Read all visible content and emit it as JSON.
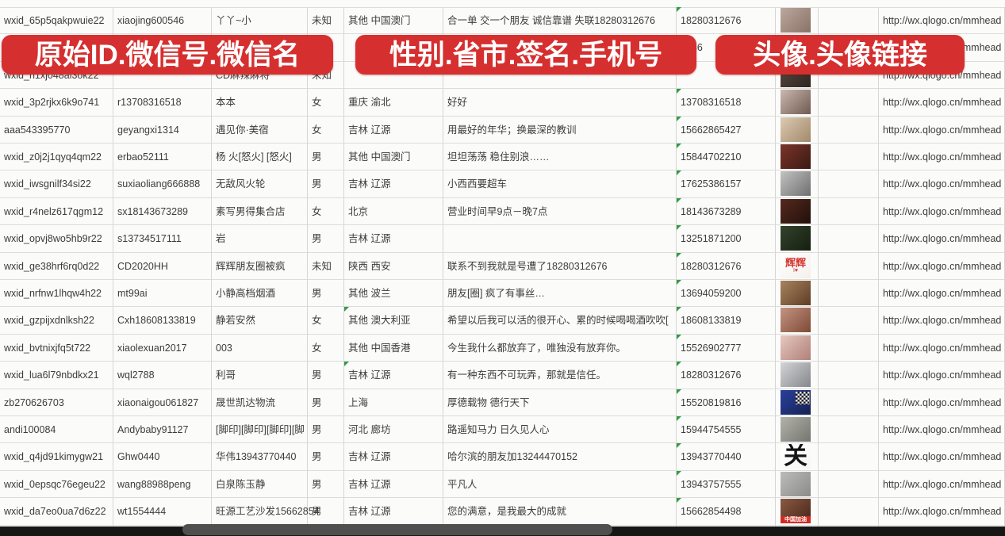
{
  "banners": {
    "left": "原始ID.微信号.微信名",
    "middle": "性别.省市.签名.手机号",
    "right": "头像.头像链接",
    "sticker_color": "#d62f2f"
  },
  "table": {
    "url_prefix": "http://wx.qlogo.cn/mmhead",
    "rows": [
      {
        "wxid": "wxid_65p5qakpwuie22",
        "account": "xiaojing600546",
        "name": "丫丫~小",
        "gender": "未知",
        "region": "其他 中国澳门",
        "signature": "合一单 交一个朋友 诚信靠谱 失联18280312676",
        "phone": "18280312676",
        "url": "http://wx.qlogo.cn/mmhead",
        "phone_marker": true,
        "region_marker": false,
        "avatar": {
          "bg1": "#bba89f",
          "bg2": "#8a7166",
          "label": "",
          "label_color": "",
          "sub": "",
          "band": "",
          "qr": false
        }
      },
      {
        "wxid": "",
        "account": "",
        "name": "",
        "gender": "",
        "region": "",
        "signature": "",
        "phone": "5386",
        "url": "http://wx.qlogo.cn/mmhead",
        "phone_marker": false,
        "region_marker": false,
        "avatar": null
      },
      {
        "wxid": "wxid_h1xj048al3ok22",
        "account": "",
        "name": "CD麻辣麻将",
        "gender": "未知",
        "region": "",
        "signature": "",
        "phone": "",
        "url": "http://wx.qlogo.cn/mmhead",
        "phone_marker": false,
        "region_marker": false,
        "avatar": {
          "bg1": "#5a4a42",
          "bg2": "#2e2620",
          "label": "",
          "label_color": "",
          "sub": "",
          "band": "",
          "qr": false
        }
      },
      {
        "wxid": "wxid_3p2rjkx6k9o741",
        "account": "r13708316518",
        "name": "本本",
        "gender": "女",
        "region": "重庆 渝北",
        "signature": "好好",
        "phone": "13708316518",
        "url": "http://wx.qlogo.cn/mmhead",
        "phone_marker": true,
        "region_marker": false,
        "avatar": {
          "bg1": "#cbb8b0",
          "bg2": "#6e5a50",
          "label": "",
          "label_color": "",
          "sub": "",
          "band": "",
          "qr": false
        }
      },
      {
        "wxid": "aaa543395770",
        "account": "geyangxi1314",
        "name": "遇见你·美宿",
        "gender": "女",
        "region": "吉林 辽源",
        "signature": "用最好的年华；换最深的教训",
        "phone": "15662865427",
        "url": "http://wx.qlogo.cn/mmhead",
        "phone_marker": true,
        "region_marker": false,
        "avatar": {
          "bg1": "#dccab2",
          "bg2": "#a2896a",
          "label": "",
          "label_color": "",
          "sub": "",
          "band": "",
          "qr": false
        }
      },
      {
        "wxid": "wxid_z0j2j1qyq4qm22",
        "account": "erbao52111",
        "name": "杨 火[怒火] [怒火]",
        "gender": "男",
        "region": "其他 中国澳门",
        "signature": "坦坦荡荡 稳住别浪……",
        "phone": "15844702210",
        "url": "http://wx.qlogo.cn/mmhead",
        "phone_marker": true,
        "region_marker": false,
        "avatar": {
          "bg1": "#7c342b",
          "bg2": "#3a1a13",
          "label": "",
          "label_color": "",
          "sub": "",
          "band": "",
          "qr": false
        }
      },
      {
        "wxid": "wxid_iwsgnilf34si22",
        "account": "suxiaoliang666888",
        "name": "无敌风火轮",
        "gender": "男",
        "region": "吉林 辽源",
        "signature": "小西西要超车",
        "phone": "17625386157",
        "url": "http://wx.qlogo.cn/mmhead",
        "phone_marker": true,
        "region_marker": false,
        "avatar": {
          "bg1": "#c2c2c2",
          "bg2": "#6f6f6f",
          "label": "",
          "label_color": "",
          "sub": "",
          "band": "",
          "qr": false
        }
      },
      {
        "wxid": "wxid_r4nelz617qgm12",
        "account": "sx18143673289",
        "name": "素写男得集合店",
        "gender": "女",
        "region": "北京",
        "signature": "营业时间早9点－晚7点",
        "phone": "18143673289",
        "url": "http://wx.qlogo.cn/mmhead",
        "phone_marker": true,
        "region_marker": false,
        "avatar": {
          "bg1": "#55291f",
          "bg2": "#21100a",
          "label": "",
          "label_color": "",
          "sub": "",
          "band": "",
          "qr": false
        }
      },
      {
        "wxid": "wxid_opvj8wo5hb9r22",
        "account": "s13734517111",
        "name": "岩",
        "gender": "男",
        "region": "吉林 辽源",
        "signature": "",
        "phone": "13251871200",
        "url": "http://wx.qlogo.cn/mmhead",
        "phone_marker": true,
        "region_marker": false,
        "avatar": {
          "bg1": "#32422c",
          "bg2": "#161f10",
          "label": "",
          "label_color": "",
          "sub": "",
          "band": "",
          "qr": false
        }
      },
      {
        "wxid": "wxid_ge38hrf6rq0d22",
        "account": "CD2020HH",
        "name": "辉辉朋友圈被疯",
        "gender": "未知",
        "region": "陕西 西安",
        "signature": "联系不到我就是号遭了18280312676",
        "phone": "18280312676",
        "url": "http://wx.qlogo.cn/mmhead",
        "phone_marker": true,
        "region_marker": false,
        "avatar": {
          "bg1": "#ffffff",
          "bg2": "#f4f0ec",
          "label": "辉辉",
          "label_color": "#d43530",
          "sub": "I♥",
          "band": "",
          "qr": false
        }
      },
      {
        "wxid": "wxid_nrfnw1lhqw4h22",
        "account": "mt99ai",
        "name": "小静高档烟酒",
        "gender": "男",
        "region": "其他 波兰",
        "signature": "朋友[圈] 疯了有事丝…",
        "phone": "13694059200",
        "url": "http://wx.qlogo.cn/mmhead",
        "phone_marker": true,
        "region_marker": false,
        "avatar": {
          "bg1": "#a8835f",
          "bg2": "#5e3d24",
          "label": "",
          "label_color": "",
          "sub": "",
          "band": "",
          "qr": false
        }
      },
      {
        "wxid": "wxid_gzpijxdnlksh22",
        "account": "Cxh18608133819",
        "name": "静若安然",
        "gender": "女",
        "region": "其他 澳大利亚",
        "signature": "希望以后我可以活的很开心、累的时候喝喝酒吹吹[",
        "phone": "18608133819",
        "url": "http://wx.qlogo.cn/mmhead",
        "phone_marker": true,
        "region_marker": true,
        "avatar": {
          "bg1": "#c49383",
          "bg2": "#7e4a35",
          "label": "",
          "label_color": "",
          "sub": "",
          "band": "",
          "qr": false
        }
      },
      {
        "wxid": "wxid_bvtnixjfq5t722",
        "account": "xiaolexuan2017",
        "name": "003",
        "gender": "女",
        "region": "其他 中国香港",
        "signature": "今生我什么都放弃了，唯独没有放弃你。",
        "phone": "15526902777",
        "url": "http://wx.qlogo.cn/mmhead",
        "phone_marker": true,
        "region_marker": false,
        "avatar": {
          "bg1": "#e6c8c0",
          "bg2": "#b08078",
          "label": "",
          "label_color": "",
          "sub": "",
          "band": "",
          "qr": false
        }
      },
      {
        "wxid": "wxid_lua6l79nbdkx21",
        "account": "wql2788",
        "name": "利哥",
        "gender": "男",
        "region": "吉林 辽源",
        "signature": "有一种东西不可玩弄，那就是信任。",
        "phone": "18280312676",
        "url": "http://wx.qlogo.cn/mmhead",
        "phone_marker": true,
        "region_marker": true,
        "avatar": {
          "bg1": "#d4d4d6",
          "bg2": "#85878c",
          "label": "",
          "label_color": "",
          "sub": "",
          "band": "",
          "qr": false
        }
      },
      {
        "wxid": "zb270626703",
        "account": "xiaonaigou061827",
        "name": "晟世凯达物流",
        "gender": "男",
        "region": "上海",
        "signature": "厚德载物 德行天下",
        "phone": "15520819816",
        "url": "http://wx.qlogo.cn/mmhead",
        "phone_marker": true,
        "region_marker": false,
        "avatar": {
          "bg1": "#2b3f9e",
          "bg2": "#16224f",
          "label": "",
          "label_color": "",
          "sub": "",
          "band": "",
          "qr": true
        }
      },
      {
        "wxid": "andi100084",
        "account": "Andybaby91127",
        "name": "[脚印][脚印][脚印][脚",
        "gender": "男",
        "region": "河北 廊坊",
        "signature": "路遥知马力 日久见人心",
        "phone": "15944754555",
        "url": "http://wx.qlogo.cn/mmhead",
        "phone_marker": true,
        "region_marker": false,
        "avatar": {
          "bg1": "#b3b3ab",
          "bg2": "#757570",
          "label": "",
          "label_color": "",
          "sub": "",
          "band": "",
          "qr": false
        }
      },
      {
        "wxid": "wxid_q4jd91kimygw21",
        "account": "Ghw0440",
        "name": "华伟13943770440",
        "gender": "男",
        "region": "吉林 辽源",
        "signature": "哈尔滨的朋友加13244470152",
        "phone": "13943770440",
        "url": "http://wx.qlogo.cn/mmhead",
        "phone_marker": true,
        "region_marker": false,
        "avatar": {
          "bg1": "#ffffff",
          "bg2": "#f6f6f4",
          "label": "关",
          "label_color": "#141414",
          "sub": "",
          "band": "",
          "qr": false
        }
      },
      {
        "wxid": "wxid_0epsqc76egeu22",
        "account": "wang88988peng",
        "name": "白泉陈玉静",
        "gender": "男",
        "region": "吉林 辽源",
        "signature": "平凡人",
        "phone": "13943757555",
        "url": "http://wx.qlogo.cn/mmhead",
        "phone_marker": true,
        "region_marker": false,
        "avatar": {
          "bg1": "#bcbcba",
          "bg2": "#8b8b88",
          "label": "",
          "label_color": "",
          "sub": "",
          "band": "",
          "qr": false
        }
      },
      {
        "wxid": "wxid_da7eo0ua7d6z22",
        "account": "wt1554444",
        "name": "旺源工艺沙发15662854",
        "gender": "男",
        "region": "吉林 辽源",
        "signature": "您的满意，是我最大的成就",
        "phone": "15662854498",
        "url": "http://wx.qlogo.cn/mmhead",
        "phone_marker": true,
        "region_marker": false,
        "avatar": {
          "bg1": "#8a5a42",
          "bg2": "#46251a",
          "label": "",
          "label_color": "",
          "sub": "",
          "band": "中国加油",
          "qr": false
        }
      },
      {
        "wxid": "",
        "account": "",
        "name": "",
        "gender": "",
        "region": "",
        "signature": "",
        "phone": "",
        "url": "",
        "phone_marker": false,
        "region_marker": false,
        "avatar": {
          "bg1": "#7e9cc0",
          "bg2": "#d8e0e8",
          "label": "",
          "label_color": "",
          "sub": "",
          "band": "",
          "qr": false
        }
      }
    ]
  }
}
